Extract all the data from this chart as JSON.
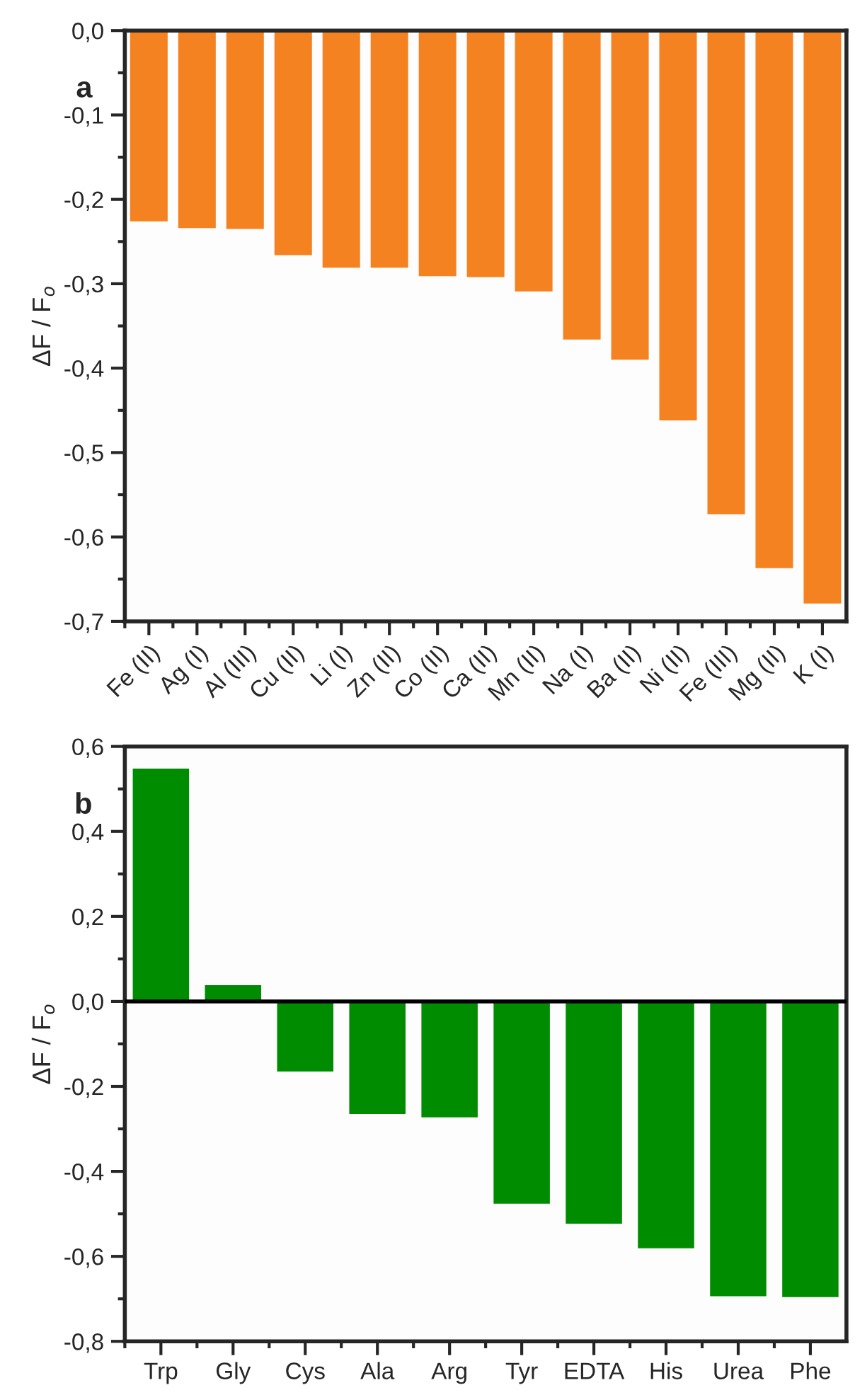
{
  "chart_data": [
    {
      "type": "bar",
      "ylabel": "ΔF / F$_{o}$",
      "annotations": [
        "a"
      ],
      "color": "#f58220",
      "categories": [
        "Fe (II)",
        "Ag (I)",
        "Al (III)",
        "Cu (II)",
        "Li (I)",
        "Zn (II)",
        "Co (II)",
        "Ca (II)",
        "Mn (II)",
        "Na (I)",
        "Ba (II)",
        "Ni (II)",
        "Fe (III)",
        "Mg (II)",
        "K (I)"
      ],
      "values": [
        -0.226,
        -0.234,
        -0.235,
        -0.266,
        -0.281,
        -0.281,
        -0.291,
        -0.292,
        -0.309,
        -0.366,
        -0.39,
        -0.462,
        -0.573,
        -0.637,
        -0.679
      ],
      "ylim": [
        -0.7,
        0.0
      ],
      "yticks": [
        {
          "value": 0.0,
          "label": "0,0"
        },
        {
          "value": -0.1,
          "label": "-0,1"
        },
        {
          "value": -0.2,
          "label": "-0,2"
        },
        {
          "value": -0.3,
          "label": "-0,3"
        },
        {
          "value": -0.4,
          "label": "-0,4"
        },
        {
          "value": -0.5,
          "label": "-0,5"
        },
        {
          "value": -0.6,
          "label": "-0,6"
        },
        {
          "value": -0.7,
          "label": "-0,7"
        }
      ],
      "grid": false,
      "legend": false
    },
    {
      "type": "bar",
      "ylabel": "ΔF / F$_{o}$",
      "annotations": [
        "b"
      ],
      "color": "#008c00",
      "categories": [
        "Trp",
        "Gly",
        "Cys",
        "Ala",
        "Arg",
        "Tyr",
        "EDTA",
        "His",
        "Urea",
        "Phe"
      ],
      "values": [
        0.548,
        0.038,
        -0.165,
        -0.265,
        -0.273,
        -0.476,
        -0.523,
        -0.581,
        -0.694,
        -0.696
      ],
      "ylim": [
        -0.8,
        0.6
      ],
      "yticks": [
        {
          "value": 0.6,
          "label": "0,6"
        },
        {
          "value": 0.4,
          "label": "0,4"
        },
        {
          "value": 0.2,
          "label": "0,2"
        },
        {
          "value": 0.0,
          "label": "0,0"
        },
        {
          "value": -0.2,
          "label": "-0,2"
        },
        {
          "value": -0.4,
          "label": "-0,4"
        },
        {
          "value": -0.6,
          "label": "-0,6"
        },
        {
          "value": -0.8,
          "label": "-0,8"
        }
      ],
      "ref_lines": [
        {
          "axis": "y",
          "value": 0.0,
          "color": "#000000"
        }
      ],
      "grid": false,
      "legend": false
    }
  ]
}
